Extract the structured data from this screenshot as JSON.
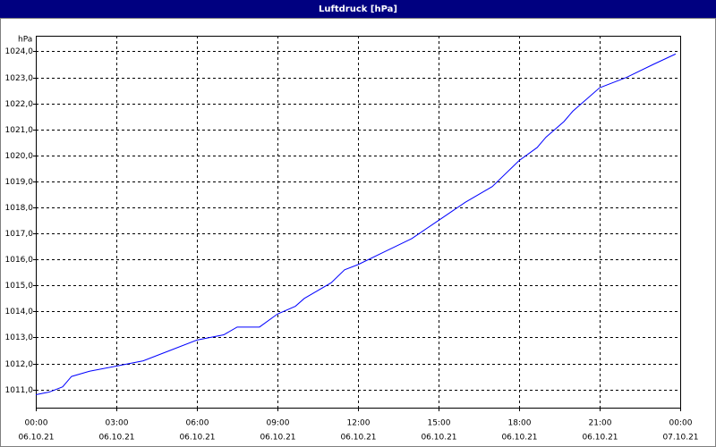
{
  "chart_data": {
    "type": "line",
    "title": "Luftdruck [hPa]",
    "y_unit": "hPa",
    "x": [
      0,
      0.5,
      1,
      1.33,
      2,
      3,
      4,
      5,
      6,
      7,
      7.5,
      8.33,
      9,
      9.67,
      10,
      11,
      11.5,
      12,
      13,
      14,
      15,
      16,
      17,
      18,
      18.67,
      19,
      19.67,
      20,
      21,
      22,
      23,
      23.83
    ],
    "series": [
      {
        "name": "Luftdruck",
        "color": "#0000ff",
        "values": [
          1010.8,
          1010.9,
          1011.1,
          1011.5,
          1011.7,
          1011.9,
          1012.1,
          1012.5,
          1012.9,
          1013.1,
          1013.4,
          1013.4,
          1013.9,
          1014.2,
          1014.5,
          1015.1,
          1015.6,
          1015.8,
          1016.3,
          1016.8,
          1017.5,
          1018.2,
          1018.8,
          1019.8,
          1020.3,
          1020.7,
          1021.3,
          1021.7,
          1022.6,
          1023.0,
          1023.5,
          1023.9
        ]
      }
    ],
    "xlim": [
      0,
      24
    ],
    "xticks": [
      {
        "value": 0,
        "label": "00:00",
        "date": "06.10.21"
      },
      {
        "value": 3,
        "label": "03:00",
        "date": "06.10.21"
      },
      {
        "value": 6,
        "label": "06:00",
        "date": "06.10.21"
      },
      {
        "value": 9,
        "label": "09:00",
        "date": "06.10.21"
      },
      {
        "value": 12,
        "label": "12:00",
        "date": "06.10.21"
      },
      {
        "value": 15,
        "label": "15:00",
        "date": "06.10.21"
      },
      {
        "value": 18,
        "label": "18:00",
        "date": "06.10.21"
      },
      {
        "value": 21,
        "label": "21:00",
        "date": "06.10.21"
      },
      {
        "value": 24,
        "label": "00:00",
        "date": "07.10.21"
      }
    ],
    "ylim": [
      1010.3,
      1024.6
    ],
    "yticks": [
      {
        "value": 1011,
        "label": "1011,0"
      },
      {
        "value": 1012,
        "label": "1012,0"
      },
      {
        "value": 1013,
        "label": "1013,0"
      },
      {
        "value": 1014,
        "label": "1014,0"
      },
      {
        "value": 1015,
        "label": "1015,0"
      },
      {
        "value": 1016,
        "label": "1016,0"
      },
      {
        "value": 1017,
        "label": "1017,0"
      },
      {
        "value": 1018,
        "label": "1018,0"
      },
      {
        "value": 1019,
        "label": "1019,0"
      },
      {
        "value": 1020,
        "label": "1020,0"
      },
      {
        "value": 1021,
        "label": "1021,0"
      },
      {
        "value": 1022,
        "label": "1022,0"
      },
      {
        "value": 1023,
        "label": "1023,0"
      },
      {
        "value": 1024,
        "label": "1024,0"
      }
    ],
    "grid": true
  }
}
